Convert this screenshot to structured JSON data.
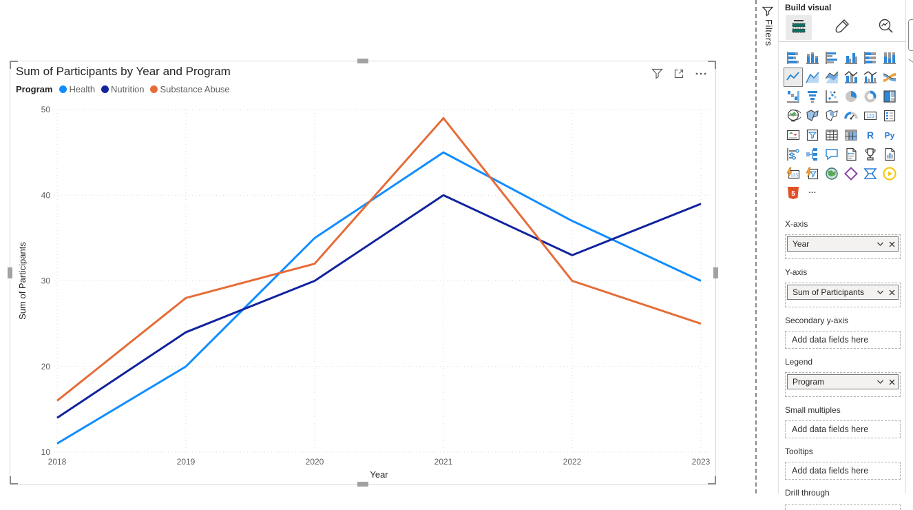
{
  "chart_data": {
    "type": "line",
    "title": "Sum of Participants by Year and Program",
    "x": [
      2018,
      2019,
      2020,
      2021,
      2022,
      2023
    ],
    "series": [
      {
        "name": "Health",
        "color": "#118DFF",
        "values": [
          11,
          20,
          35,
          45,
          37,
          30
        ]
      },
      {
        "name": "Nutrition",
        "color": "#12239E",
        "values": [
          14,
          24,
          30,
          40,
          33,
          39
        ]
      },
      {
        "name": "Substance Abuse",
        "color": "#E66C37",
        "values": [
          16,
          28,
          32,
          49,
          30,
          25
        ]
      }
    ],
    "xlabel": "Year",
    "ylabel": "Sum of Participants",
    "ylim": [
      10,
      50
    ],
    "yticks": [
      10,
      20,
      30,
      40,
      50
    ],
    "legend_title": "Program",
    "legend_position": "top-left",
    "grid": true
  },
  "visual": {
    "header_icons": [
      "filter-icon",
      "focus-mode-icon",
      "more-options-icon"
    ]
  },
  "filters_pane": {
    "label": "Filters",
    "icon": "funnel-icon"
  },
  "visualizations_pane": {
    "header": "Build visual",
    "tabs": [
      {
        "name": "build-visual",
        "icon": "build-visual-icon",
        "selected": true
      },
      {
        "name": "format-visual",
        "icon": "format-paintbrush-icon",
        "selected": false
      },
      {
        "name": "analytics",
        "icon": "analytics-magnifier-icon",
        "selected": false
      }
    ],
    "gallery": [
      {
        "name": "stacked-bar-chart",
        "glyph": "sbar"
      },
      {
        "name": "stacked-column-chart",
        "glyph": "scol"
      },
      {
        "name": "clustered-bar-chart",
        "glyph": "cbar"
      },
      {
        "name": "clustered-column-chart",
        "glyph": "ccol"
      },
      {
        "name": "100-stacked-bar-chart",
        "glyph": "pbar"
      },
      {
        "name": "100-stacked-column-chart",
        "glyph": "pcol"
      },
      {
        "name": "line-chart",
        "glyph": "line",
        "selected": true
      },
      {
        "name": "area-chart",
        "glyph": "area"
      },
      {
        "name": "stacked-area-chart",
        "glyph": "sarea"
      },
      {
        "name": "line-and-stacked-column-chart",
        "glyph": "linecol"
      },
      {
        "name": "line-and-clustered-column-chart",
        "glyph": "linecol2"
      },
      {
        "name": "ribbon-chart",
        "glyph": "ribbon"
      },
      {
        "name": "waterfall-chart",
        "glyph": "waterfall"
      },
      {
        "name": "funnel-chart",
        "glyph": "funnelchart"
      },
      {
        "name": "scatter-chart",
        "glyph": "scatter"
      },
      {
        "name": "pie-chart",
        "glyph": "pie"
      },
      {
        "name": "donut-chart",
        "glyph": "donut"
      },
      {
        "name": "treemap",
        "glyph": "treemap"
      },
      {
        "name": "map",
        "glyph": "map"
      },
      {
        "name": "filled-map",
        "glyph": "fmap"
      },
      {
        "name": "shape-map",
        "glyph": "shmap"
      },
      {
        "name": "gauge",
        "glyph": "gauge"
      },
      {
        "name": "card",
        "glyph": "card"
      },
      {
        "name": "multi-row-card",
        "glyph": "mcard"
      },
      {
        "name": "kpi",
        "glyph": "kpi"
      },
      {
        "name": "slicer",
        "glyph": "slicer"
      },
      {
        "name": "table",
        "glyph": "table"
      },
      {
        "name": "matrix",
        "glyph": "matrix"
      },
      {
        "name": "r-script-visual",
        "glyph": "rtext",
        "text": "R"
      },
      {
        "name": "python-visual",
        "glyph": "pytext",
        "text": "Py"
      },
      {
        "name": "key-influencers",
        "glyph": "keyinf"
      },
      {
        "name": "decomposition-tree",
        "glyph": "dtree"
      },
      {
        "name": "q-and-a",
        "glyph": "qa"
      },
      {
        "name": "smart-narrative",
        "glyph": "narrative"
      },
      {
        "name": "metrics",
        "glyph": "trophy"
      },
      {
        "name": "paginated-report",
        "glyph": "paginated"
      },
      {
        "name": "card-new",
        "glyph": "cardnew"
      },
      {
        "name": "slicer-new",
        "glyph": "slicernew"
      },
      {
        "name": "arcgis-map",
        "glyph": "arcgis"
      },
      {
        "name": "power-apps",
        "glyph": "papps"
      },
      {
        "name": "power-automate",
        "glyph": "pauto"
      },
      {
        "name": "play-visual",
        "glyph": "play"
      },
      {
        "name": "html-content",
        "glyph": "html5",
        "text": "5"
      },
      {
        "name": "more-visuals",
        "glyph": "more",
        "text": "···"
      }
    ],
    "wells": [
      {
        "label": "X-axis",
        "pill": "Year"
      },
      {
        "label": "Y-axis",
        "pill": "Sum of Participants"
      },
      {
        "label": "Secondary y-axis",
        "placeholder": "Add data fields here"
      },
      {
        "label": "Legend",
        "pill": "Program"
      },
      {
        "label": "Small multiples",
        "placeholder": "Add data fields here"
      },
      {
        "label": "Tooltips",
        "placeholder": "Add data fields here"
      },
      {
        "label": "Drill through"
      }
    ]
  }
}
